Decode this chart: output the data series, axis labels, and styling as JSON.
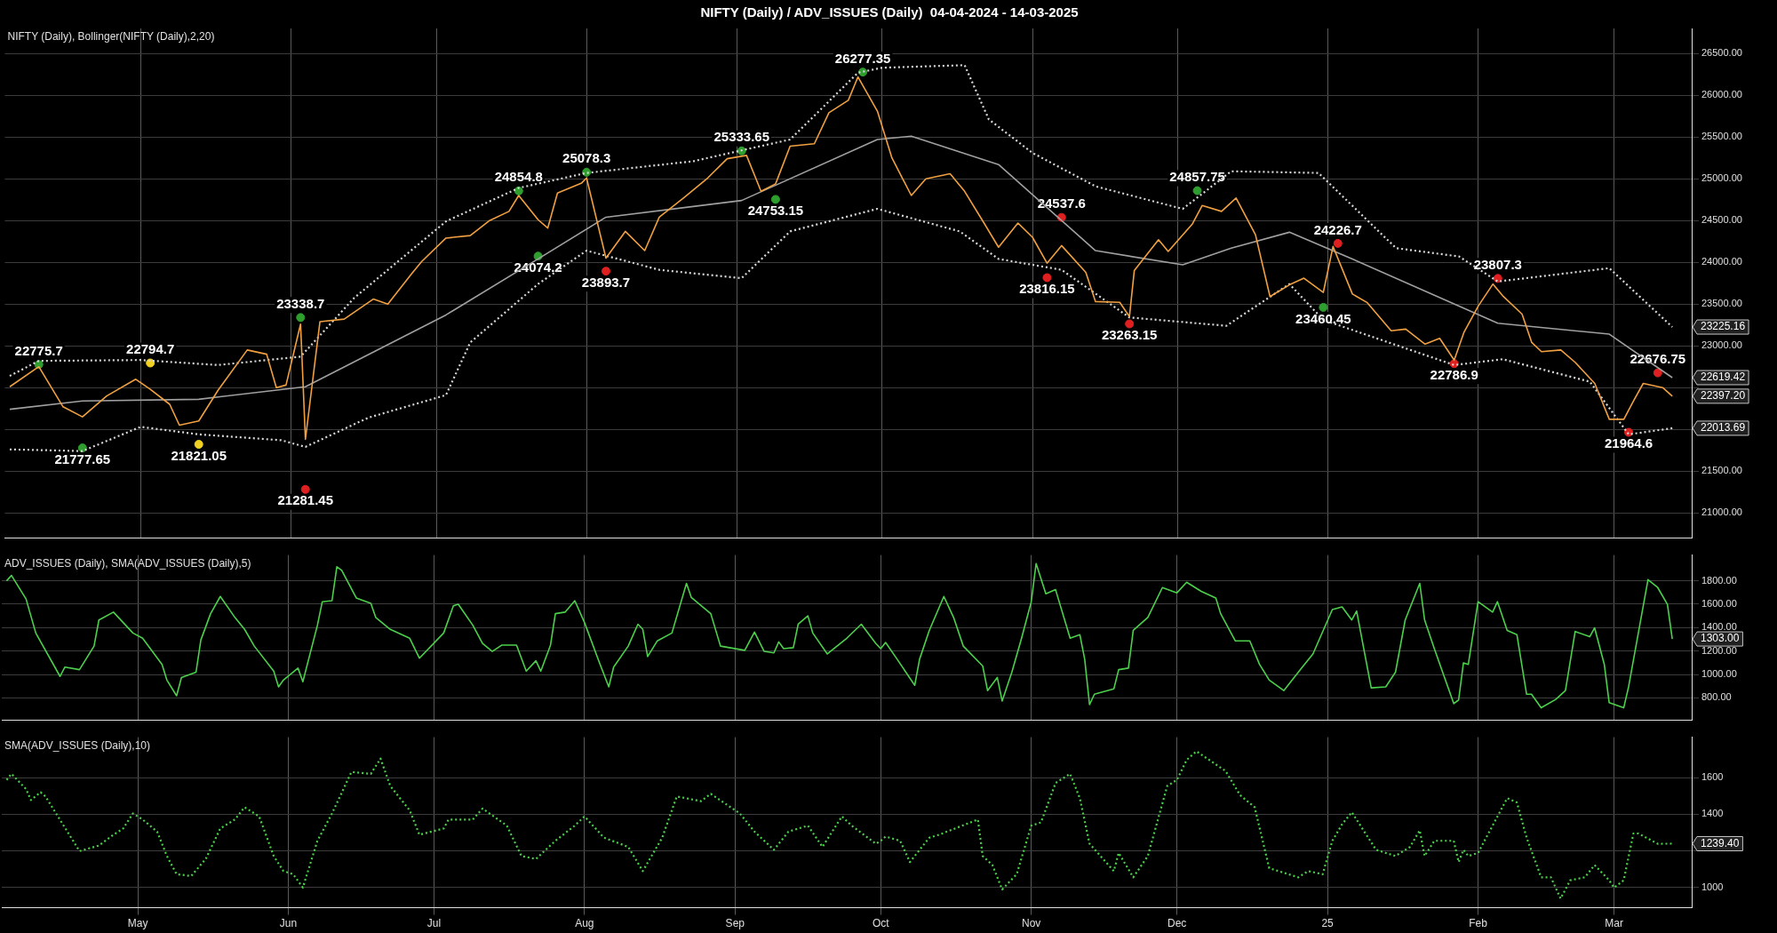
{
  "chart_data": [
    {
      "type": "line",
      "title": "NIFTY (Daily) / ADV_ISSUES (Daily)  04-04-2024 - 14-03-2025",
      "subtitle": "NIFTY (Daily), Bollinger(NIFTY (Daily),2,20)",
      "xlim": [
        "2024-04-03",
        "2025-03-17"
      ],
      "xticks": [
        {
          "value": "2024-05-01",
          "label": null
        },
        {
          "value": "2024-06-01",
          "label": null
        },
        {
          "value": "2024-07-01",
          "label": null
        },
        {
          "value": "2024-08-01",
          "label": null
        },
        {
          "value": "2024-09-01",
          "label": null
        },
        {
          "value": "2024-10-01",
          "label": null
        },
        {
          "value": "2024-11-01",
          "label": null
        },
        {
          "value": "2024-12-01",
          "label": null
        },
        {
          "value": "2025-01-01",
          "label": null
        },
        {
          "value": "2025-02-01",
          "label": null
        },
        {
          "value": "2025-03-01",
          "label": null
        }
      ],
      "ylim": [
        20700,
        26800
      ],
      "yticks": [
        {
          "value": 21000,
          "label": "21000.00"
        },
        {
          "value": 21500,
          "label": "21500.00"
        },
        {
          "value": 22000,
          "label": null
        },
        {
          "value": 22500,
          "label": null
        },
        {
          "value": 23000,
          "label": "23000.00"
        },
        {
          "value": 23500,
          "label": "23500.00"
        },
        {
          "value": 24000,
          "label": "24000.00"
        },
        {
          "value": 24500,
          "label": "24500.00"
        },
        {
          "value": 25000,
          "label": "25000.00"
        },
        {
          "value": 25500,
          "label": "25500.00"
        },
        {
          "value": 26000,
          "label": "26000.00"
        },
        {
          "value": 26500,
          "label": "26500.00"
        }
      ],
      "grid": true,
      "tick_labels": "y",
      "series": [
        {
          "color": "#f0a040",
          "line_style": "solid",
          "x": [
            "2024-04-04",
            "2024-04-10",
            "2024-04-15",
            "2024-04-19",
            "2024-04-24",
            "2024-04-30",
            "2024-05-03",
            "2024-05-07",
            "2024-05-09",
            "2024-05-13",
            "2024-05-17",
            "2024-05-23",
            "2024-05-27",
            "2024-05-29",
            "2024-05-31",
            "2024-06-03",
            "2024-06-04",
            "2024-06-07",
            "2024-06-12",
            "2024-06-18",
            "2024-06-21",
            "2024-06-26",
            "2024-06-28",
            "2024-07-03",
            "2024-07-08",
            "2024-07-12",
            "2024-07-16",
            "2024-07-18",
            "2024-07-22",
            "2024-07-24",
            "2024-07-26",
            "2024-07-31",
            "2024-08-01",
            "2024-08-05",
            "2024-08-09",
            "2024-08-13",
            "2024-08-16",
            "2024-08-21",
            "2024-08-26",
            "2024-08-30",
            "2024-09-03",
            "2024-09-06",
            "2024-09-09",
            "2024-09-12",
            "2024-09-17",
            "2024-09-20",
            "2024-09-24",
            "2024-09-26",
            "2024-09-30",
            "2024-10-03",
            "2024-10-07",
            "2024-10-10",
            "2024-10-15",
            "2024-10-18",
            "2024-10-22",
            "2024-10-25",
            "2024-10-29",
            "2024-11-01",
            "2024-11-04",
            "2024-11-07",
            "2024-11-12",
            "2024-11-14",
            "2024-11-19",
            "2024-11-21",
            "2024-11-22",
            "2024-11-27",
            "2024-11-29",
            "2024-12-04",
            "2024-12-06",
            "2024-12-10",
            "2024-12-13",
            "2024-12-17",
            "2024-12-20",
            "2024-12-24",
            "2024-12-27",
            "2024-12-31",
            "2025-01-02",
            "2025-01-06",
            "2025-01-09",
            "2025-01-14",
            "2025-01-17",
            "2025-01-21",
            "2025-01-24",
            "2025-01-27",
            "2025-01-29",
            "2025-02-01",
            "2025-02-04",
            "2025-02-06",
            "2025-02-10",
            "2025-02-12",
            "2025-02-14",
            "2025-02-18",
            "2025-02-21",
            "2025-02-25",
            "2025-02-28",
            "2025-03-03",
            "2025-03-05",
            "2025-03-07",
            "2025-03-11",
            "2025-03-13"
          ],
          "values": [
            22510,
            22750,
            22270,
            22150,
            22400,
            22600,
            22480,
            22300,
            22050,
            22100,
            22470,
            22950,
            22900,
            22500,
            22530,
            23260,
            21880,
            23290,
            23320,
            23560,
            23500,
            23870,
            24010,
            24290,
            24320,
            24500,
            24610,
            24800,
            24510,
            24410,
            24830,
            24950,
            25010,
            24050,
            24370,
            24140,
            24540,
            24770,
            25010,
            25240,
            25280,
            24850,
            24940,
            25390,
            25420,
            25790,
            25940,
            26220,
            25810,
            25250,
            24800,
            25000,
            25060,
            24850,
            24470,
            24180,
            24470,
            24300,
            23990,
            24200,
            23880,
            23530,
            23520,
            23350,
            23900,
            24270,
            24130,
            24460,
            24680,
            24610,
            24770,
            24330,
            23590,
            23730,
            23810,
            23640,
            24190,
            23620,
            23520,
            23180,
            23200,
            23020,
            23090,
            22830,
            23160,
            23480,
            23740,
            23600,
            23380,
            23040,
            22930,
            22950,
            22800,
            22550,
            22120,
            22120,
            22340,
            22550,
            22500,
            22397.2
          ]
        },
        {
          "color": "#d8d8d8",
          "line_style": "dotted",
          "x": [
            "2024-04-04",
            "2024-04-10",
            "2024-05-01",
            "2024-05-17",
            "2024-06-03",
            "2024-06-14",
            "2024-07-03",
            "2024-07-18",
            "2024-08-01",
            "2024-08-23",
            "2024-09-02",
            "2024-09-12",
            "2024-09-26",
            "2024-10-01",
            "2024-10-18",
            "2024-10-23",
            "2024-11-01",
            "2024-11-14",
            "2024-12-02",
            "2024-12-12",
            "2024-12-30",
            "2025-01-15",
            "2025-01-28",
            "2025-02-05",
            "2025-02-28",
            "2025-03-13"
          ],
          "values": [
            22640,
            22820,
            22830,
            22770,
            22870,
            23570,
            24490,
            24890,
            25070,
            25210,
            25340,
            25470,
            26270,
            26330,
            26360,
            25710,
            25310,
            24910,
            24640,
            25090,
            25070,
            24170,
            24070,
            23770,
            23930,
            23225.16
          ]
        },
        {
          "color": "#a0a0a0",
          "line_style": "solid",
          "x": [
            "2024-04-04",
            "2024-04-19",
            "2024-05-13",
            "2024-06-04",
            "2024-07-03",
            "2024-07-22",
            "2024-08-05",
            "2024-09-02",
            "2024-09-30",
            "2024-10-07",
            "2024-10-25",
            "2024-11-14",
            "2024-12-02",
            "2024-12-12",
            "2024-12-24",
            "2025-01-06",
            "2025-02-05",
            "2025-02-28",
            "2025-03-13"
          ],
          "values": [
            22240,
            22340,
            22360,
            22510,
            23370,
            24040,
            24540,
            24740,
            25470,
            25510,
            25170,
            24140,
            23970,
            24170,
            24360,
            24040,
            23270,
            23140,
            22619.42
          ]
        },
        {
          "color": "#d8d8d8",
          "line_style": "dotted",
          "x": [
            "2024-04-04",
            "2024-04-19",
            "2024-05-01",
            "2024-05-13",
            "2024-05-30",
            "2024-06-04",
            "2024-06-17",
            "2024-07-03",
            "2024-07-08",
            "2024-07-22",
            "2024-08-01",
            "2024-08-16",
            "2024-09-02",
            "2024-09-12",
            "2024-09-30",
            "2024-10-17",
            "2024-10-25",
            "2024-11-07",
            "2024-11-21",
            "2024-12-11",
            "2024-12-24",
            "2024-12-31",
            "2025-01-27",
            "2025-02-06",
            "2025-02-24",
            "2025-03-04",
            "2025-03-13"
          ],
          "values": [
            21760,
            21740,
            22030,
            21940,
            21870,
            21790,
            22140,
            22410,
            23040,
            23740,
            24140,
            23910,
            23810,
            24370,
            24640,
            24370,
            24040,
            23910,
            23340,
            23240,
            23740,
            23310,
            22770,
            22840,
            22570,
            21940,
            22013.69
          ]
        },
        {
          "type": "scatter",
          "marker": "circle",
          "colors": [
            "#2e9e2e",
            "#2e9e2e",
            "#f0d020",
            "#f0d020",
            "#2e9e2e",
            "#e02020",
            "#2e9e2e",
            "#2e9e2e",
            "#2e9e2e",
            "#e02020",
            "#2e9e2e",
            "#2e9e2e",
            "#2e9e2e",
            "#e02020",
            "#e02020",
            "#e02020",
            "#2e9e2e",
            "#2e9e2e",
            "#e02020",
            "#e02020",
            "#e02020",
            "#e02020",
            "#e02020"
          ],
          "x": [
            "2024-04-10",
            "2024-04-19",
            "2024-05-03",
            "2024-05-13",
            "2024-06-03",
            "2024-06-04",
            "2024-07-18",
            "2024-07-22",
            "2024-08-01",
            "2024-08-05",
            "2024-09-02",
            "2024-09-09",
            "2024-09-27",
            "2024-11-04",
            "2024-11-07",
            "2024-11-21",
            "2024-12-05",
            "2024-12-31",
            "2025-01-03",
            "2025-01-27",
            "2025-02-05",
            "2025-03-04",
            "2025-03-10"
          ],
          "values": [
            22775.7,
            21777.65,
            22794.7,
            21821.05,
            23338.7,
            21281.45,
            24854.8,
            24074.2,
            25078.3,
            23893.7,
            25333.65,
            24753.15,
            26277.35,
            23816.15,
            24537.6,
            23263.15,
            24857.75,
            23460.45,
            24226.7,
            22786.9,
            23807.3,
            21964.6,
            22676.75
          ]
        }
      ],
      "annotations": [
        {
          "text": "22775.7",
          "x": "2024-04-10",
          "y": 22775.7
        },
        {
          "text": "21777.65",
          "x": "2024-04-19",
          "y": 21777.65
        },
        {
          "text": "22794.7",
          "x": "2024-05-03",
          "y": 22794.7
        },
        {
          "text": "21821.05",
          "x": "2024-05-13",
          "y": 21821.05
        },
        {
          "text": "23338.7",
          "x": "2024-06-03",
          "y": 23338.7
        },
        {
          "text": "21281.45",
          "x": "2024-06-04",
          "y": 21281.45
        },
        {
          "text": "24854.8",
          "x": "2024-07-18",
          "y": 24854.8
        },
        {
          "text": "24074.2",
          "x": "2024-07-22",
          "y": 24074.2
        },
        {
          "text": "25078.3",
          "x": "2024-08-01",
          "y": 25078.3
        },
        {
          "text": "23893.7",
          "x": "2024-08-05",
          "y": 23893.7
        },
        {
          "text": "25333.65",
          "x": "2024-09-02",
          "y": 25333.65
        },
        {
          "text": "24753.15",
          "x": "2024-09-09",
          "y": 24753.15
        },
        {
          "text": "26277.35",
          "x": "2024-09-27",
          "y": 26277.35
        },
        {
          "text": "23816.15",
          "x": "2024-11-04",
          "y": 23816.15
        },
        {
          "text": "24537.6",
          "x": "2024-11-07",
          "y": 24537.6
        },
        {
          "text": "23263.15",
          "x": "2024-11-21",
          "y": 23263.15
        },
        {
          "text": "24857.75",
          "x": "2024-12-05",
          "y": 24857.75
        },
        {
          "text": "23460.45",
          "x": "2024-12-31",
          "y": 23460.45
        },
        {
          "text": "24226.7",
          "x": "2025-01-03",
          "y": 24226.7
        },
        {
          "text": "22786.9",
          "x": "2025-01-27",
          "y": 22786.9
        },
        {
          "text": "23807.3",
          "x": "2025-02-05",
          "y": 23807.3
        },
        {
          "text": "21964.6",
          "x": "2025-03-04",
          "y": 21964.6
        },
        {
          "text": "22676.75",
          "x": "2025-03-10",
          "y": 22676.75
        },
        {
          "text": "23225.16",
          "x": "2025-03-13",
          "y": 23225.16
        },
        {
          "text": "22619.42",
          "x": "2025-03-13",
          "y": 22619.42
        },
        {
          "text": "22397.20",
          "x": "2025-03-13",
          "y": 22397.2
        },
        {
          "text": "22013.69",
          "x": "2025-03-13",
          "y": 22013.69
        }
      ]
    },
    {
      "type": "line",
      "subtitle": "ADV_ISSUES (Daily), SMA(ADV_ISSUES (Daily),5)",
      "xlim": [
        "2024-04-03",
        "2025-03-17"
      ],
      "xticks": [
        {
          "value": "2024-05-01",
          "label": null
        },
        {
          "value": "2024-06-01",
          "label": null
        },
        {
          "value": "2024-07-01",
          "label": null
        },
        {
          "value": "2024-08-01",
          "label": null
        },
        {
          "value": "2024-09-01",
          "label": null
        },
        {
          "value": "2024-10-01",
          "label": null
        },
        {
          "value": "2024-11-01",
          "label": null
        },
        {
          "value": "2024-12-01",
          "label": null
        },
        {
          "value": "2025-01-01",
          "label": null
        },
        {
          "value": "2025-02-01",
          "label": null
        },
        {
          "value": "2025-03-01",
          "label": null
        }
      ],
      "ylim": [
        610,
        2020
      ],
      "yticks": [
        {
          "value": 800,
          "label": "800.00"
        },
        {
          "value": 1000,
          "label": "1000.00"
        },
        {
          "value": 1200,
          "label": "1200.00"
        },
        {
          "value": 1400,
          "label": "1400.00"
        },
        {
          "value": 1600,
          "label": "1600.00"
        },
        {
          "value": 1800,
          "label": "1800.00"
        }
      ],
      "grid": true,
      "tick_labels": "y",
      "series": [
        {
          "color": "#4cd04c",
          "line_style": "solid",
          "x": [
            "2024-04-04",
            "2024-04-05",
            "2024-04-08",
            "2024-04-10",
            "2024-04-15",
            "2024-04-16",
            "2024-04-19",
            "2024-04-22",
            "2024-04-23",
            "2024-04-26",
            "2024-04-30",
            "2024-05-02",
            "2024-05-06",
            "2024-05-07",
            "2024-05-09",
            "2024-05-10",
            "2024-05-13",
            "2024-05-14",
            "2024-05-16",
            "2024-05-18",
            "2024-05-21",
            "2024-05-23",
            "2024-05-25",
            "2024-05-29",
            "2024-05-30",
            "2024-05-31",
            "2024-06-03",
            "2024-06-04",
            "2024-06-07",
            "2024-06-08",
            "2024-06-10",
            "2024-06-11",
            "2024-06-12",
            "2024-06-15",
            "2024-06-18",
            "2024-06-19",
            "2024-06-22",
            "2024-06-26",
            "2024-06-28",
            "2024-07-03",
            "2024-07-05",
            "2024-07-06",
            "2024-07-09",
            "2024-07-11",
            "2024-07-13",
            "2024-07-15",
            "2024-07-18",
            "2024-07-20",
            "2024-07-22",
            "2024-07-23",
            "2024-07-25",
            "2024-07-26",
            "2024-07-28",
            "2024-07-30",
            "2024-08-01",
            "2024-08-04",
            "2024-08-06",
            "2024-08-07",
            "2024-08-10",
            "2024-08-12",
            "2024-08-13",
            "2024-08-14",
            "2024-08-16",
            "2024-08-19",
            "2024-08-22",
            "2024-08-23",
            "2024-08-27",
            "2024-08-29",
            "2024-09-03",
            "2024-09-05",
            "2024-09-07",
            "2024-09-09",
            "2024-09-10",
            "2024-09-11",
            "2024-09-13",
            "2024-09-14",
            "2024-09-16",
            "2024-09-17",
            "2024-09-20",
            "2024-09-24",
            "2024-09-27",
            "2024-09-30",
            "2024-10-01",
            "2024-10-02",
            "2024-10-04",
            "2024-10-08",
            "2024-10-09",
            "2024-10-11",
            "2024-10-14",
            "2024-10-16",
            "2024-10-18",
            "2024-10-22",
            "2024-10-23",
            "2024-10-25",
            "2024-10-26",
            "2024-10-28",
            "2024-10-30",
            "2024-11-01",
            "2024-11-02",
            "2024-11-04",
            "2024-11-06",
            "2024-11-09",
            "2024-11-11",
            "2024-11-12",
            "2024-11-13",
            "2024-11-14",
            "2024-11-18",
            "2024-11-19",
            "2024-11-21",
            "2024-11-22",
            "2024-11-25",
            "2024-11-28",
            "2024-12-01",
            "2024-12-03",
            "2024-12-06",
            "2024-12-09",
            "2024-12-10",
            "2024-12-13",
            "2024-12-16",
            "2024-12-18",
            "2024-12-20",
            "2024-12-23",
            "2024-12-27",
            "2024-12-29",
            "2025-01-02",
            "2025-01-04",
            "2025-01-06",
            "2025-01-07",
            "2025-01-10",
            "2025-01-13",
            "2025-01-15",
            "2025-01-17",
            "2025-01-20",
            "2025-01-21",
            "2025-01-23",
            "2025-01-27",
            "2025-01-28",
            "2025-01-29",
            "2025-01-30",
            "2025-02-01",
            "2025-02-04",
            "2025-02-05",
            "2025-02-07",
            "2025-02-09",
            "2025-02-11",
            "2025-02-12",
            "2025-02-14",
            "2025-02-17",
            "2025-02-19",
            "2025-02-21",
            "2025-02-24",
            "2025-02-25",
            "2025-02-27",
            "2025-02-28",
            "2025-03-03",
            "2025-03-04",
            "2025-03-08",
            "2025-03-10",
            "2025-03-12",
            "2025-03-13"
          ],
          "values": [
            1800,
            1845,
            1644,
            1354,
            983,
            1063,
            1041,
            1242,
            1465,
            1532,
            1354,
            1309,
            1086,
            952,
            818,
            974,
            1019,
            1295,
            1519,
            1666,
            1487,
            1385,
            1242,
            1028,
            894,
            952,
            1054,
            938,
            1420,
            1621,
            1630,
            1920,
            1889,
            1653,
            1608,
            1487,
            1385,
            1309,
            1139,
            1354,
            1586,
            1599,
            1420,
            1264,
            1197,
            1251,
            1251,
            1028,
            1117,
            1028,
            1251,
            1519,
            1532,
            1630,
            1443,
            1108,
            894,
            1063,
            1242,
            1429,
            1385,
            1153,
            1287,
            1354,
            1778,
            1657,
            1519,
            1242,
            1206,
            1362,
            1197,
            1184,
            1278,
            1220,
            1229,
            1429,
            1500,
            1354,
            1175,
            1309,
            1429,
            1264,
            1220,
            1273,
            1153,
            907,
            1130,
            1376,
            1666,
            1487,
            1242,
            1072,
            862,
            974,
            773,
            1019,
            1309,
            1621,
            1947,
            1689,
            1724,
            1309,
            1340,
            1130,
            742,
            831,
            876,
            1041,
            1054,
            1376,
            1487,
            1742,
            1697,
            1787,
            1710,
            1653,
            1519,
            1287,
            1287,
            1086,
            952,
            862,
            1072,
            1175,
            1554,
            1577,
            1465,
            1541,
            885,
            894,
            1019,
            1465,
            1778,
            1465,
            1220,
            751,
            782,
            1099,
            1086,
            1621,
            1532,
            1621,
            1376,
            1340,
            831,
            831,
            715,
            787,
            862,
            1367,
            1322,
            1398,
            1086,
            760,
            715,
            894,
            1809,
            1742,
            1599,
            1303
          ]
        }
      ],
      "annotations": [
        {
          "text": "1303.00",
          "x": "2025-03-13",
          "y": 1303
        }
      ]
    },
    {
      "type": "line",
      "subtitle": "SMA(ADV_ISSUES (Daily),10)",
      "xlim": [
        "2024-04-03",
        "2025-03-17"
      ],
      "xticks": [
        {
          "value": "2024-05-01",
          "label": "May"
        },
        {
          "value": "2024-06-01",
          "label": "Jun"
        },
        {
          "value": "2024-07-01",
          "label": "Jul"
        },
        {
          "value": "2024-08-01",
          "label": "Aug"
        },
        {
          "value": "2024-09-01",
          "label": "Sep"
        },
        {
          "value": "2024-10-01",
          "label": "Oct"
        },
        {
          "value": "2024-11-01",
          "label": "Nov"
        },
        {
          "value": "2024-12-01",
          "label": "Dec"
        },
        {
          "value": "2025-01-01",
          "label": "25"
        },
        {
          "value": "2025-02-01",
          "label": "Feb"
        },
        {
          "value": "2025-03-01",
          "label": "Mar"
        }
      ],
      "ylim": [
        890,
        1820
      ],
      "yticks": [
        1000,
        {
          "value": 1200,
          "label": null
        },
        1400,
        1600
      ],
      "grid": true,
      "series": [
        {
          "color": "#4cd04c",
          "line_style": "dotted",
          "x": [
            "2024-04-04",
            "2024-04-05",
            "2024-04-08",
            "2024-04-09",
            "2024-04-11",
            "2024-04-12",
            "2024-04-19",
            "2024-04-23",
            "2024-04-26",
            "2024-04-28",
            "2024-04-30",
            "2024-05-02",
            "2024-05-05",
            "2024-05-07",
            "2024-05-09",
            "2024-05-12",
            "2024-05-15",
            "2024-05-18",
            "2024-05-21",
            "2024-05-23",
            "2024-05-26",
            "2024-05-29",
            "2024-05-31",
            "2024-06-02",
            "2024-06-04",
            "2024-06-07",
            "2024-06-10",
            "2024-06-14",
            "2024-06-18",
            "2024-06-20",
            "2024-06-22",
            "2024-06-26",
            "2024-06-28",
            "2024-07-03",
            "2024-07-04",
            "2024-07-09",
            "2024-07-11",
            "2024-07-16",
            "2024-07-19",
            "2024-07-22",
            "2024-07-26",
            "2024-07-30",
            "2024-08-01",
            "2024-08-05",
            "2024-08-10",
            "2024-08-13",
            "2024-08-17",
            "2024-08-20",
            "2024-08-25",
            "2024-08-27",
            "2024-09-02",
            "2024-09-05",
            "2024-09-09",
            "2024-09-12",
            "2024-09-16",
            "2024-09-19",
            "2024-09-23",
            "2024-09-25",
            "2024-09-30",
            "2024-10-01",
            "2024-10-02",
            "2024-10-05",
            "2024-10-07",
            "2024-10-11",
            "2024-10-13",
            "2024-10-21",
            "2024-10-22",
            "2024-10-24",
            "2024-10-26",
            "2024-10-29",
            "2024-11-01",
            "2024-11-03",
            "2024-11-06",
            "2024-11-09",
            "2024-11-11",
            "2024-11-13",
            "2024-11-18",
            "2024-11-19",
            "2024-11-22",
            "2024-11-25",
            "2024-11-29",
            "2024-12-01",
            "2024-12-03",
            "2024-12-05",
            "2024-12-11",
            "2024-12-14",
            "2024-12-17",
            "2024-12-20",
            "2024-12-26",
            "2024-12-28",
            "2024-12-31",
            "2025-01-02",
            "2025-01-04",
            "2025-01-06",
            "2025-01-11",
            "2025-01-15",
            "2025-01-18",
            "2025-01-20",
            "2025-01-21",
            "2025-01-23",
            "2025-01-27",
            "2025-01-28",
            "2025-01-29",
            "2025-01-30",
            "2025-02-01",
            "2025-02-07",
            "2025-02-09",
            "2025-02-11",
            "2025-02-14",
            "2025-02-16",
            "2025-02-18",
            "2025-02-20",
            "2025-02-23",
            "2025-02-25",
            "2025-02-28",
            "2025-03-01",
            "2025-03-03",
            "2025-03-05",
            "2025-03-06",
            "2025-03-10",
            "2025-03-13"
          ],
          "values": [
            1587,
            1620,
            1537,
            1477,
            1520,
            1497,
            1199,
            1229,
            1288,
            1322,
            1404,
            1371,
            1305,
            1172,
            1073,
            1063,
            1156,
            1322,
            1371,
            1438,
            1388,
            1172,
            1090,
            1073,
            1000,
            1255,
            1404,
            1630,
            1620,
            1703,
            1554,
            1421,
            1288,
            1322,
            1371,
            1371,
            1431,
            1338,
            1172,
            1156,
            1255,
            1338,
            1388,
            1272,
            1222,
            1090,
            1272,
            1497,
            1471,
            1511,
            1404,
            1305,
            1206,
            1305,
            1338,
            1222,
            1388,
            1338,
            1239,
            1255,
            1278,
            1255,
            1139,
            1272,
            1288,
            1371,
            1172,
            1123,
            990,
            1073,
            1338,
            1355,
            1570,
            1620,
            1487,
            1239,
            1090,
            1189,
            1056,
            1172,
            1554,
            1587,
            1696,
            1743,
            1636,
            1504,
            1438,
            1106,
            1056,
            1090,
            1073,
            1255,
            1345,
            1411,
            1206,
            1172,
            1222,
            1312,
            1172,
            1255,
            1255,
            1139,
            1206,
            1172,
            1189,
            1487,
            1464,
            1272,
            1056,
            1056,
            940,
            1040,
            1056,
            1123,
            1040,
            1000,
            1040,
            1295,
            1295,
            1239,
            1239.4
          ]
        }
      ],
      "annotations": [
        {
          "text": "1239.40",
          "x": "2025-03-13",
          "y": 1239.4
        }
      ]
    }
  ]
}
